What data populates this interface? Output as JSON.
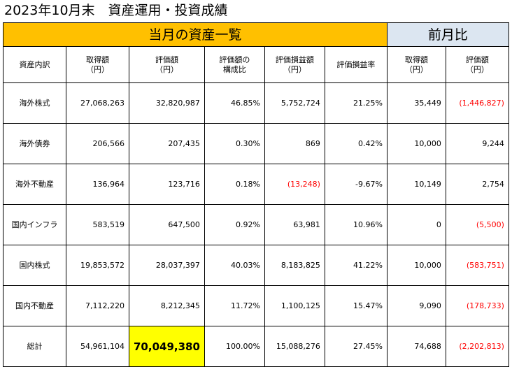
{
  "page_title": "2023年10月末　資産運用・投資成績",
  "banners": {
    "current": "当月の資産一覧",
    "previous": "前月比"
  },
  "headers": [
    [
      "資産内訳"
    ],
    [
      "取得額",
      "（円）"
    ],
    [
      "評価額",
      "（円）"
    ],
    [
      "評価額の",
      "構成比"
    ],
    [
      "評価損益額",
      "（円）"
    ],
    [
      "評価損益率"
    ],
    [
      "取得額",
      "（円）"
    ],
    [
      "評価額",
      "（円）"
    ]
  ],
  "rows": [
    {
      "label": "海外株式",
      "cells": [
        "27,068,263",
        "32,820,987",
        "46.85%",
        "5,752,724",
        "21.25%",
        "35,449",
        "(1,446,827)"
      ],
      "negative": [
        false,
        false,
        false,
        false,
        false,
        false,
        true
      ]
    },
    {
      "label": "海外債券",
      "cells": [
        "206,566",
        "207,435",
        "0.30%",
        "869",
        "0.42%",
        "10,000",
        "9,244"
      ],
      "negative": [
        false,
        false,
        false,
        false,
        false,
        false,
        false
      ]
    },
    {
      "label": "海外不動産",
      "cells": [
        "136,964",
        "123,716",
        "0.18%",
        "(13,248)",
        "-9.67%",
        "10,149",
        "2,754"
      ],
      "negative": [
        false,
        false,
        false,
        true,
        false,
        false,
        false
      ]
    },
    {
      "label": "国内インフラ",
      "cells": [
        "583,519",
        "647,500",
        "0.92%",
        "63,981",
        "10.96%",
        "0",
        "(5,500)"
      ],
      "negative": [
        false,
        false,
        false,
        false,
        false,
        false,
        true
      ]
    },
    {
      "label": "国内株式",
      "cells": [
        "19,853,572",
        "28,037,397",
        "40.03%",
        "8,183,825",
        "41.22%",
        "10,000",
        "(583,751)"
      ],
      "negative": [
        false,
        false,
        false,
        false,
        false,
        false,
        true
      ]
    },
    {
      "label": "国内不動産",
      "cells": [
        "7,112,220",
        "8,212,345",
        "11.72%",
        "1,100,125",
        "15.47%",
        "9,090",
        "(178,733)"
      ],
      "negative": [
        false,
        false,
        false,
        false,
        false,
        false,
        true
      ]
    }
  ],
  "total": {
    "label": "総計",
    "cells": [
      "54,961,104",
      "70,049,380",
      "100.00%",
      "15,088,276",
      "27.45%",
      "74,688",
      "(2,202,813)"
    ],
    "negative": [
      false,
      false,
      false,
      false,
      false,
      false,
      true
    ],
    "highlight_index": 1
  },
  "colors": {
    "current_banner": "#ffc000",
    "previous_banner": "#dce6f1",
    "highlight": "#ffff00",
    "negative_text": "#ff0000"
  }
}
